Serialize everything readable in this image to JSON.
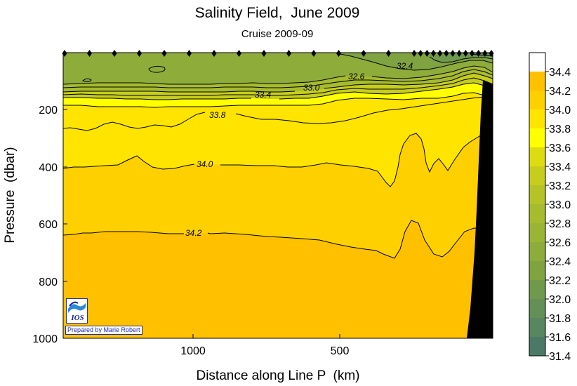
{
  "chart_data": {
    "type": "heatmap",
    "title": "Salinity Field,  June 2009",
    "subtitle": "Cruise 2009-09",
    "xlabel": "Distance along Line P  (km)",
    "ylabel": "Pressure  (dbar)",
    "x_axis": {
      "direction": "reversed",
      "range": [
        1414,
        0
      ],
      "ticks": [
        1000,
        500
      ]
    },
    "y_axis": {
      "direction": "inverted",
      "range": [
        0,
        1000
      ],
      "ticks": [
        200,
        400,
        600,
        800,
        1000
      ]
    },
    "colorbar": {
      "levels": [
        31.4,
        31.6,
        31.8,
        32.0,
        32.2,
        32.4,
        32.6,
        32.8,
        33.0,
        33.2,
        33.4,
        33.6,
        33.8,
        34.0,
        34.2,
        34.4
      ],
      "labels": [
        "31.4",
        "31.6",
        "31.8",
        "32.0",
        "32.2",
        "32.4",
        "32.6",
        "32.8",
        "33.0",
        "33.2",
        "33.4",
        "33.6",
        "33.8",
        "34.0",
        "34.2",
        "34.4"
      ],
      "colors": [
        "#3e6f6b",
        "#4a7a66",
        "#57865f",
        "#639055",
        "#6f9a4c",
        "#7fa341",
        "#8dac3a",
        "#9ab434",
        "#a6bb2d",
        "#b5c327",
        "#c6cd1d",
        "#dcdc10",
        "#ffff00",
        "#ffe400",
        "#ffd000",
        "#ffc000"
      ],
      "top_color": "#ffffff"
    },
    "contour_labels": [
      "32.4",
      "32.6",
      "33.0",
      "33.4",
      "33.8",
      "34.0",
      "34.2"
    ],
    "station_count": 27,
    "bathymetry_color": "#000000"
  },
  "logo": {
    "text": "IOS",
    "credit": "Prepared by Marie Robert"
  }
}
